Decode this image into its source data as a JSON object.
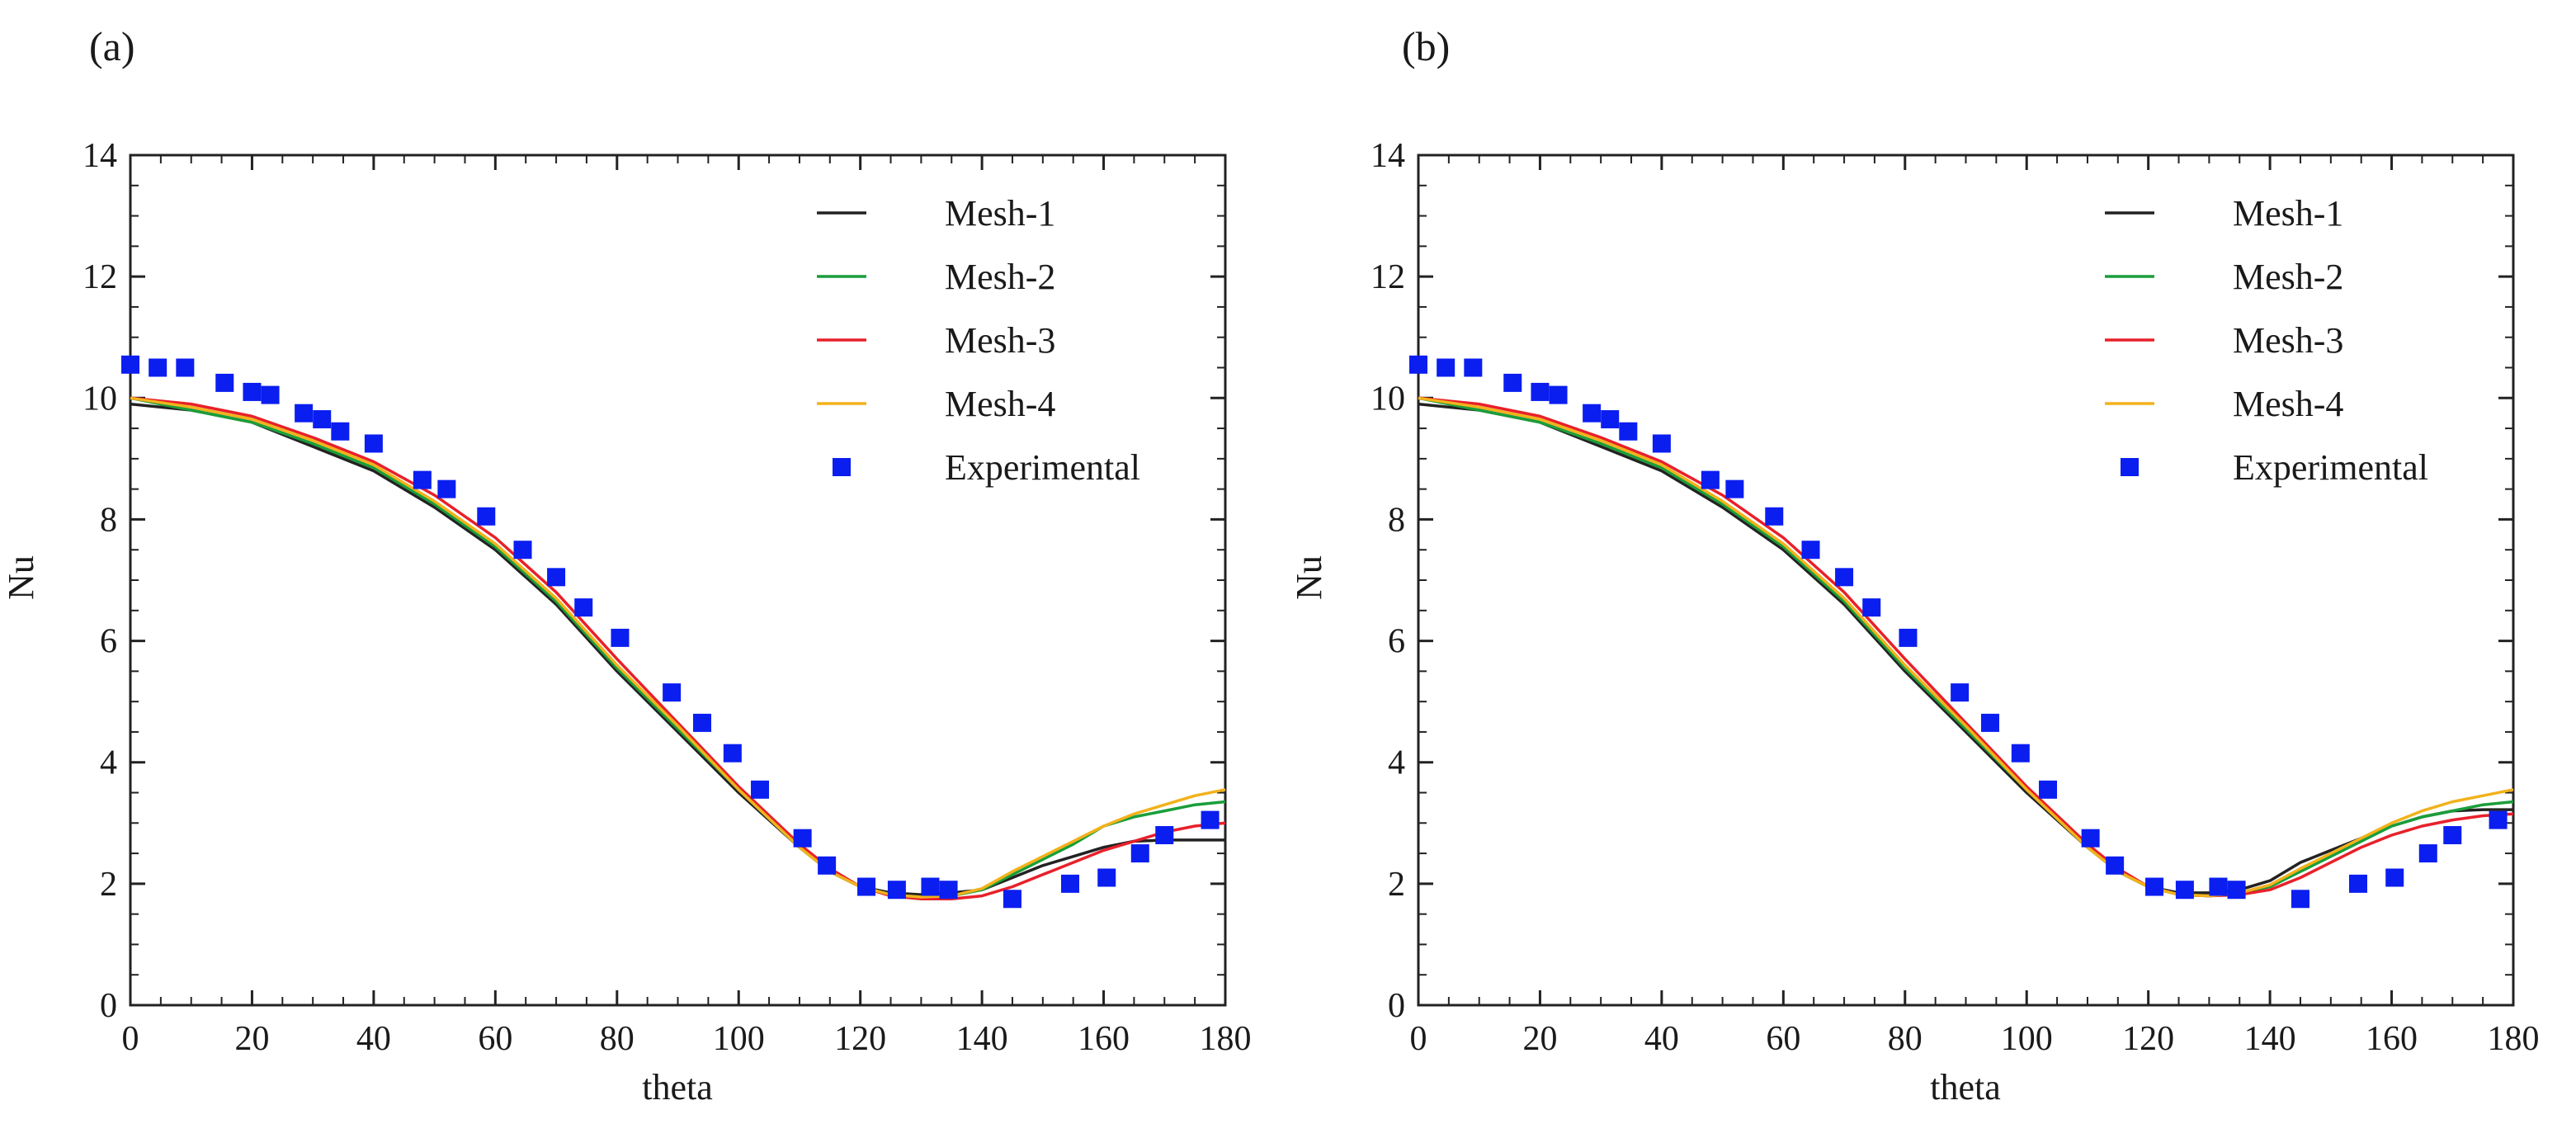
{
  "chart_data": [
    {
      "type": "line",
      "panel_label": "(a)",
      "xlabel": "theta",
      "ylabel": "Nu",
      "xlim": [
        0,
        180
      ],
      "ylim": [
        0,
        14
      ],
      "xticks": [
        0,
        20,
        40,
        60,
        80,
        100,
        120,
        140,
        160,
        180
      ],
      "yticks": [
        0,
        2,
        4,
        6,
        8,
        10,
        12,
        14
      ],
      "grid": false,
      "legend_position": "top-right",
      "series": [
        {
          "name": "Mesh-1",
          "kind": "line",
          "color": "#222222",
          "x": [
            0,
            10,
            20,
            30,
            40,
            50,
            60,
            70,
            80,
            90,
            100,
            110,
            115,
            120,
            125,
            130,
            135,
            140,
            145,
            150,
            155,
            160,
            165,
            170,
            175,
            180
          ],
          "y": [
            9.9,
            9.8,
            9.6,
            9.2,
            8.8,
            8.2,
            7.5,
            6.6,
            5.5,
            4.5,
            3.5,
            2.6,
            2.2,
            1.95,
            1.85,
            1.82,
            1.85,
            1.9,
            2.1,
            2.3,
            2.45,
            2.6,
            2.7,
            2.72,
            2.72,
            2.72
          ]
        },
        {
          "name": "Mesh-2",
          "kind": "line",
          "color": "#1a9e3a",
          "x": [
            0,
            10,
            20,
            30,
            40,
            50,
            60,
            70,
            80,
            90,
            100,
            110,
            115,
            120,
            125,
            130,
            135,
            140,
            145,
            150,
            155,
            160,
            165,
            170,
            175,
            180
          ],
          "y": [
            10.0,
            9.8,
            9.6,
            9.25,
            8.85,
            8.25,
            7.55,
            6.65,
            5.55,
            4.55,
            3.55,
            2.6,
            2.2,
            1.95,
            1.82,
            1.78,
            1.8,
            1.9,
            2.15,
            2.4,
            2.65,
            2.95,
            3.1,
            3.2,
            3.3,
            3.35
          ]
        },
        {
          "name": "Mesh-3",
          "kind": "line",
          "color": "#e8202a",
          "x": [
            0,
            10,
            20,
            30,
            40,
            50,
            60,
            70,
            80,
            90,
            100,
            110,
            115,
            120,
            125,
            130,
            135,
            140,
            145,
            150,
            155,
            160,
            165,
            170,
            175,
            180
          ],
          "y": [
            10.0,
            9.9,
            9.7,
            9.35,
            8.95,
            8.4,
            7.7,
            6.8,
            5.7,
            4.65,
            3.6,
            2.65,
            2.25,
            1.95,
            1.8,
            1.75,
            1.75,
            1.8,
            1.95,
            2.15,
            2.35,
            2.55,
            2.7,
            2.85,
            2.95,
            3.0
          ]
        },
        {
          "name": "Mesh-4",
          "kind": "line",
          "color": "#f2b21c",
          "x": [
            0,
            10,
            20,
            30,
            40,
            50,
            60,
            70,
            80,
            90,
            100,
            110,
            115,
            120,
            125,
            130,
            135,
            140,
            145,
            150,
            155,
            160,
            165,
            170,
            175,
            180
          ],
          "y": [
            10.0,
            9.85,
            9.65,
            9.3,
            8.9,
            8.3,
            7.6,
            6.7,
            5.6,
            4.6,
            3.55,
            2.6,
            2.2,
            1.95,
            1.82,
            1.78,
            1.8,
            1.92,
            2.2,
            2.45,
            2.7,
            2.95,
            3.15,
            3.3,
            3.45,
            3.55
          ]
        },
        {
          "name": "Experimental",
          "kind": "marker",
          "color": "#0a1ef0",
          "x": [
            0,
            4.5,
            9,
            15.5,
            20,
            23,
            28.5,
            31.5,
            34.5,
            40,
            48,
            52,
            58.5,
            64.5,
            70,
            74.5,
            80.5,
            89,
            94,
            99,
            103.5,
            110.5,
            114.5,
            121,
            126,
            131.5,
            134.5,
            145,
            154.5,
            160.5,
            166,
            170,
            177.5
          ],
          "y": [
            10.55,
            10.5,
            10.5,
            10.25,
            10.1,
            10.05,
            9.75,
            9.65,
            9.45,
            9.25,
            8.65,
            8.5,
            8.05,
            7.5,
            7.05,
            6.55,
            6.05,
            5.15,
            4.65,
            4.15,
            3.55,
            2.75,
            2.3,
            1.95,
            1.9,
            1.95,
            1.9,
            1.75,
            2.0,
            2.1,
            2.5,
            2.8,
            3.05
          ]
        }
      ]
    },
    {
      "type": "line",
      "panel_label": "(b)",
      "xlabel": "theta",
      "ylabel": "Nu",
      "xlim": [
        0,
        180
      ],
      "ylim": [
        0,
        14
      ],
      "xticks": [
        0,
        20,
        40,
        60,
        80,
        100,
        120,
        140,
        160,
        180
      ],
      "yticks": [
        0,
        2,
        4,
        6,
        8,
        10,
        12,
        14
      ],
      "grid": false,
      "legend_position": "top-right",
      "series": [
        {
          "name": "Mesh-1",
          "kind": "line",
          "color": "#222222",
          "x": [
            0,
            10,
            20,
            30,
            40,
            50,
            60,
            70,
            80,
            90,
            100,
            110,
            115,
            120,
            125,
            130,
            135,
            140,
            145,
            150,
            155,
            160,
            165,
            170,
            175,
            180
          ],
          "y": [
            9.9,
            9.8,
            9.6,
            9.2,
            8.8,
            8.2,
            7.5,
            6.6,
            5.5,
            4.5,
            3.5,
            2.6,
            2.2,
            1.95,
            1.85,
            1.85,
            1.9,
            2.05,
            2.35,
            2.55,
            2.75,
            2.95,
            3.1,
            3.2,
            3.22,
            3.22
          ]
        },
        {
          "name": "Mesh-2",
          "kind": "line",
          "color": "#1a9e3a",
          "x": [
            0,
            10,
            20,
            30,
            40,
            50,
            60,
            70,
            80,
            90,
            100,
            110,
            115,
            120,
            125,
            130,
            135,
            140,
            145,
            150,
            155,
            160,
            165,
            170,
            175,
            180
          ],
          "y": [
            10.0,
            9.8,
            9.6,
            9.25,
            8.85,
            8.25,
            7.55,
            6.65,
            5.55,
            4.55,
            3.55,
            2.6,
            2.2,
            1.95,
            1.82,
            1.8,
            1.85,
            1.95,
            2.2,
            2.45,
            2.7,
            2.95,
            3.1,
            3.2,
            3.3,
            3.35
          ]
        },
        {
          "name": "Mesh-3",
          "kind": "line",
          "color": "#e8202a",
          "x": [
            0,
            10,
            20,
            30,
            40,
            50,
            60,
            70,
            80,
            90,
            100,
            110,
            115,
            120,
            125,
            130,
            135,
            140,
            145,
            150,
            155,
            160,
            165,
            170,
            175,
            180
          ],
          "y": [
            10.0,
            9.9,
            9.7,
            9.35,
            8.95,
            8.4,
            7.7,
            6.8,
            5.7,
            4.65,
            3.6,
            2.65,
            2.25,
            1.95,
            1.82,
            1.8,
            1.82,
            1.9,
            2.1,
            2.35,
            2.6,
            2.8,
            2.95,
            3.05,
            3.12,
            3.15
          ]
        },
        {
          "name": "Mesh-4",
          "kind": "line",
          "color": "#f2b21c",
          "x": [
            0,
            10,
            20,
            30,
            40,
            50,
            60,
            70,
            80,
            90,
            100,
            110,
            115,
            120,
            125,
            130,
            135,
            140,
            145,
            150,
            155,
            160,
            165,
            170,
            175,
            180
          ],
          "y": [
            10.0,
            9.85,
            9.65,
            9.3,
            8.9,
            8.3,
            7.6,
            6.7,
            5.6,
            4.6,
            3.55,
            2.6,
            2.2,
            1.95,
            1.82,
            1.8,
            1.85,
            1.98,
            2.25,
            2.5,
            2.75,
            3.0,
            3.2,
            3.35,
            3.45,
            3.55
          ]
        },
        {
          "name": "Experimental",
          "kind": "marker",
          "color": "#0a1ef0",
          "x": [
            0,
            4.5,
            9,
            15.5,
            20,
            23,
            28.5,
            31.5,
            34.5,
            40,
            48,
            52,
            58.5,
            64.5,
            70,
            74.5,
            80.5,
            89,
            94,
            99,
            103.5,
            110.5,
            114.5,
            121,
            126,
            131.5,
            134.5,
            145,
            154.5,
            160.5,
            166,
            170,
            177.5
          ],
          "y": [
            10.55,
            10.5,
            10.5,
            10.25,
            10.1,
            10.05,
            9.75,
            9.65,
            9.45,
            9.25,
            8.65,
            8.5,
            8.05,
            7.5,
            7.05,
            6.55,
            6.05,
            5.15,
            4.65,
            4.15,
            3.55,
            2.75,
            2.3,
            1.95,
            1.9,
            1.95,
            1.9,
            1.75,
            2.0,
            2.1,
            2.5,
            2.8,
            3.05
          ]
        }
      ]
    }
  ]
}
